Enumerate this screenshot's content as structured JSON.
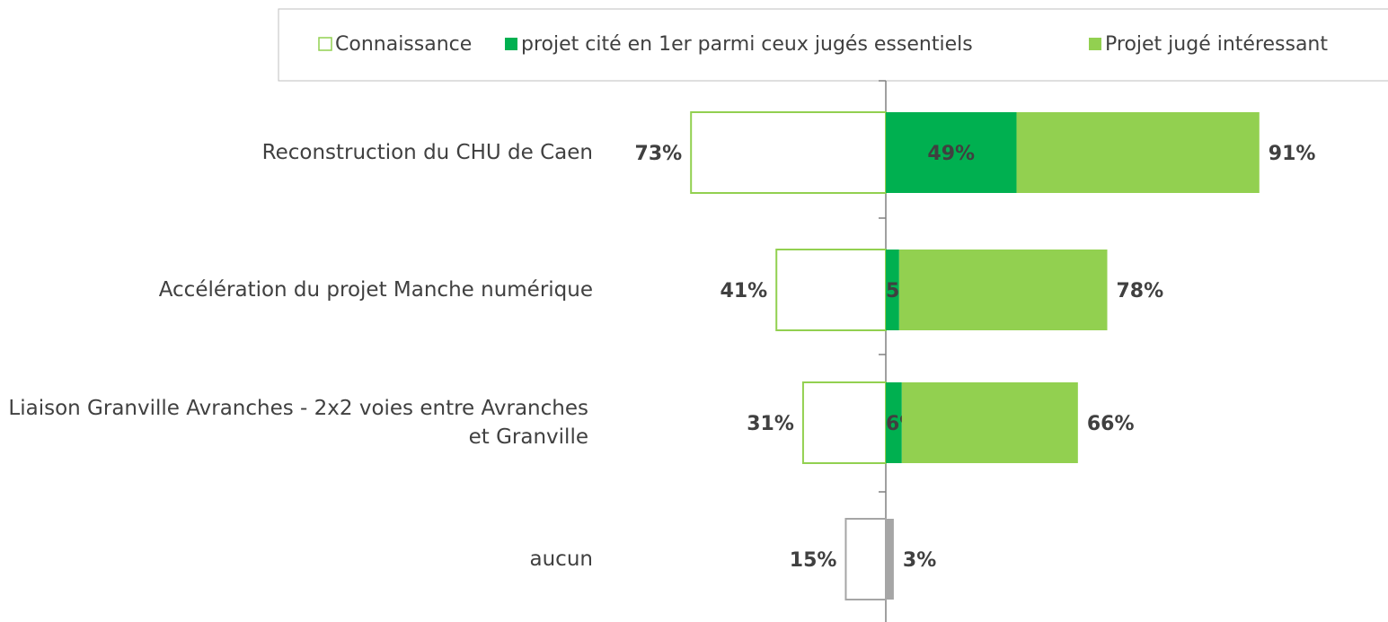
{
  "chart_data": {
    "type": "diverging-bar",
    "categories": [
      "Reconstruction du CHU de Caen",
      "Accélération du projet Manche numérique",
      "Liaison Granville Avranches - 2x2 voies entre Avranches et Granville",
      "aucun"
    ],
    "series": [
      {
        "name": "Connaissance",
        "color": "#92d050",
        "colors": [
          "#92d050",
          "#92d050",
          "#92d050",
          "#a6a6a6"
        ],
        "side": "left",
        "values": [
          73,
          41,
          31,
          15
        ],
        "value_labels": [
          "73%",
          "41%",
          "31%",
          "15%"
        ]
      },
      {
        "name": "projet cité en 1er parmi ceux jugés essentiels",
        "color": "#00b050",
        "colors": [
          "#00b050",
          "#00b050",
          "#00b050",
          "#a6a6a6"
        ],
        "side": "right",
        "values": [
          49,
          5,
          6,
          3
        ],
        "value_labels": [
          "49%",
          "5%",
          "6%",
          "3%"
        ]
      },
      {
        "name": "Projet jugé intéressant",
        "color": "#92d050",
        "side": "right",
        "values": [
          91,
          78,
          66,
          null
        ],
        "value_labels": [
          "91%",
          "78%",
          "66%",
          null
        ]
      }
    ],
    "legend": "top"
  }
}
